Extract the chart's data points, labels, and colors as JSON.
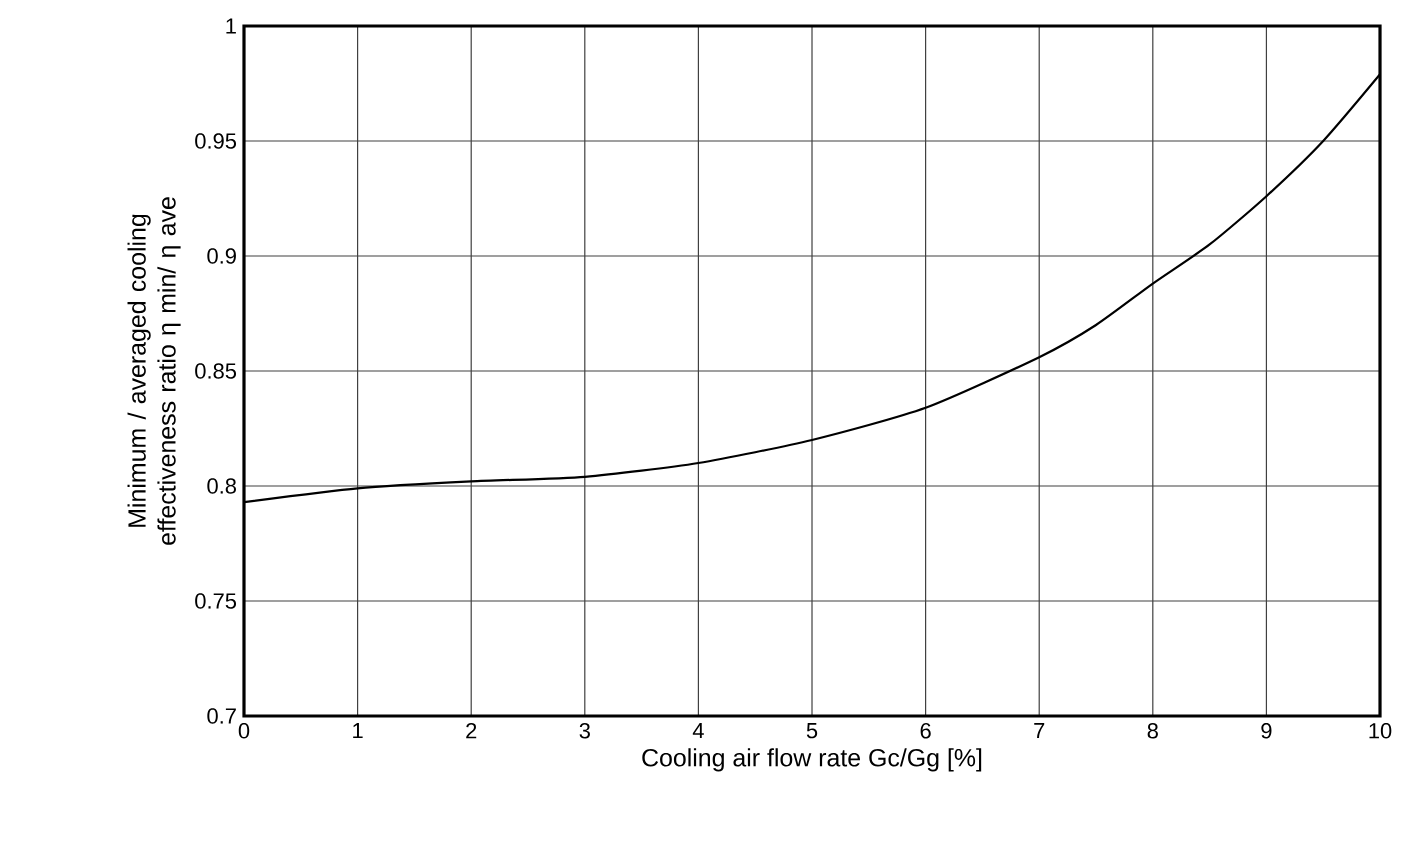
{
  "chart_data": {
    "type": "line",
    "xlabel": "Cooling air flow rate Gc/Gg [%]",
    "ylabel": "Minimum / averaged cooling effectiveness ratio η min/ η ave",
    "x": [
      0,
      1,
      2,
      3,
      4,
      5,
      6,
      7,
      7.5,
      8,
      8.5,
      9,
      9.5,
      10
    ],
    "series": [
      {
        "color": "#000000",
        "values": [
          0.793,
          0.799,
          0.802,
          0.804,
          0.81,
          0.82,
          0.834,
          0.856,
          0.87,
          0.888,
          0.905,
          0.926,
          0.95,
          0.979
        ]
      }
    ],
    "xlim": [
      0,
      10
    ],
    "xticks": [
      0,
      1,
      2,
      3,
      4,
      5,
      6,
      7,
      8,
      9,
      10
    ],
    "ylim": [
      0.7,
      1
    ],
    "yticks": [
      0.7,
      0.75,
      0.8,
      0.85,
      0.9,
      0.95,
      1
    ],
    "grid": true,
    "marker": "none",
    "line_style": "solid"
  }
}
